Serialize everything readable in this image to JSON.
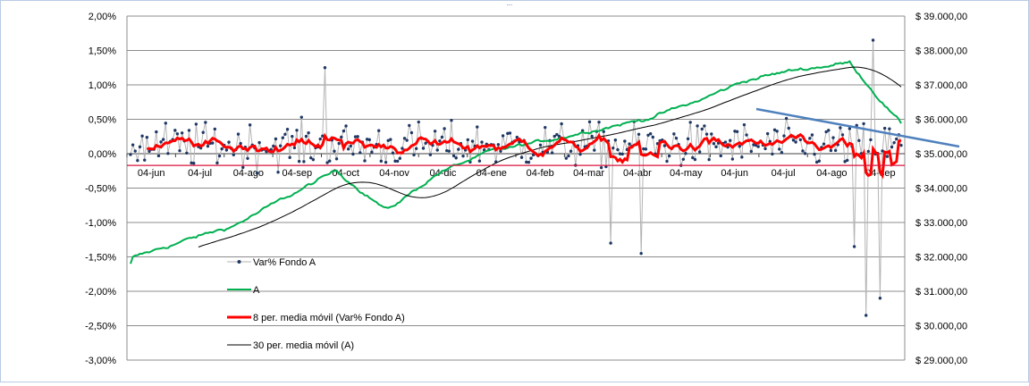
{
  "chart_data": {
    "type": "line",
    "categories": [
      "04-jun",
      "04-jul",
      "04-ago",
      "04-sep",
      "04-oct",
      "04-nov",
      "04-dic",
      "04-ene",
      "04-feb",
      "04-mar",
      "04-abr",
      "04-may",
      "04-jun",
      "04-jul",
      "04-ago",
      "04-sep"
    ],
    "y_left": {
      "min": -0.03,
      "max": 0.02,
      "step": 0.005,
      "tick_labels": [
        "2,00%",
        "1,50%",
        "1,00%",
        "0,50%",
        "0,00%",
        "-0,50%",
        "-1,00%",
        "-1,50%",
        "-2,00%",
        "-2,50%",
        "-3,00%"
      ]
    },
    "y_right": {
      "min": 29000,
      "max": 39000,
      "step": 1000,
      "tick_labels": [
        "$ 39.000,00",
        "$ 38.000,00",
        "$ 37.000,00",
        "$ 36.000,00",
        "$ 35.000,00",
        "$ 34.000,00",
        "$ 33.000,00",
        "$ 32.000,00",
        "$ 31.000,00",
        "$ 30.000,00",
        "$ 29.000,00"
      ]
    },
    "grid": true,
    "legend_position": "bottom-left, inside plot",
    "series": [
      {
        "name": "Var% Fondo A",
        "axis": "left",
        "color": "#b4b4b4",
        "marker_color": "#1f3864",
        "notable_values": {
          "max": 0.0165,
          "min": -0.0235
        }
      },
      {
        "name": "A",
        "axis": "right",
        "color": "#00b050",
        "values_at_ticks": [
          31950,
          32450,
          32900,
          33700,
          34500,
          33350,
          34450,
          35050,
          35350,
          35700,
          36000,
          36500,
          37150,
          37450,
          37650,
          35850
        ]
      },
      {
        "name": "8 per. media móvil (Var% Fondo A)",
        "axis": "left",
        "color": "#ff0000"
      },
      {
        "name": "30 per. media móvil (A)",
        "axis": "right",
        "color": "#000000"
      }
    ],
    "reference_lines": [
      {
        "type": "horizontal",
        "axis": "left",
        "value": -0.0017,
        "color": "#dc143c"
      },
      {
        "type": "trend",
        "color": "#4f81bd"
      }
    ]
  }
}
